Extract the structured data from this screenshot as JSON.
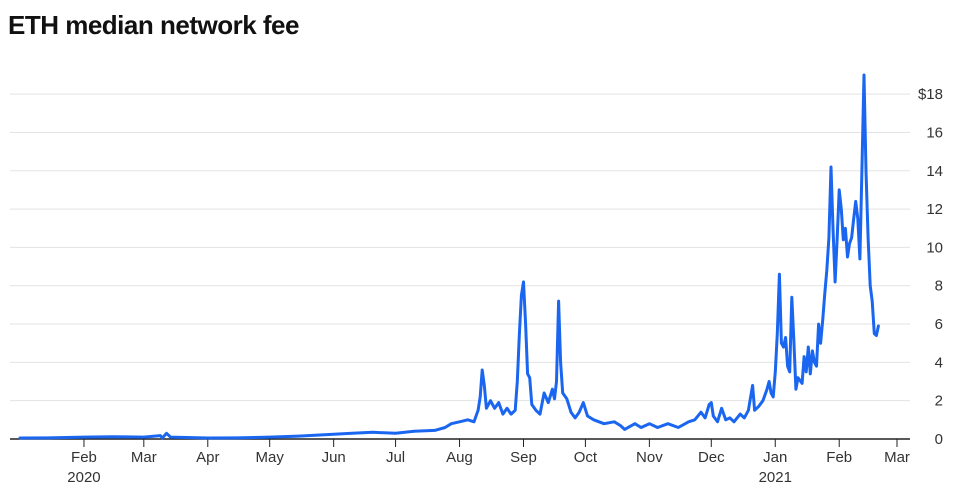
{
  "title": "ETH median network fee",
  "colors": {
    "line": "#1a66f0",
    "grid": "#e3e3e3",
    "axis": "#222222",
    "text": "#333333"
  },
  "chart_data": {
    "type": "line",
    "title": "ETH median network fee",
    "xlabel": "",
    "ylabel": "",
    "x_range": [
      "2020-01-01",
      "2021-03-01"
    ],
    "ylim": [
      0,
      19
    ],
    "grid": true,
    "y_ticks": [
      0,
      2,
      4,
      6,
      8,
      10,
      12,
      14,
      16,
      18
    ],
    "y_tick_labels": [
      "0",
      "2",
      "4",
      "6",
      "8",
      "10",
      "12",
      "14",
      "16",
      "$18"
    ],
    "x_ticks": [
      {
        "date": "2020-02-01",
        "label": "Feb",
        "sublabel": "2020"
      },
      {
        "date": "2020-03-01",
        "label": "Mar",
        "sublabel": ""
      },
      {
        "date": "2020-04-01",
        "label": "Apr",
        "sublabel": ""
      },
      {
        "date": "2020-05-01",
        "label": "May",
        "sublabel": ""
      },
      {
        "date": "2020-06-01",
        "label": "Jun",
        "sublabel": ""
      },
      {
        "date": "2020-07-01",
        "label": "Jul",
        "sublabel": ""
      },
      {
        "date": "2020-08-01",
        "label": "Aug",
        "sublabel": ""
      },
      {
        "date": "2020-09-01",
        "label": "Sep",
        "sublabel": ""
      },
      {
        "date": "2020-10-01",
        "label": "Oct",
        "sublabel": ""
      },
      {
        "date": "2020-11-01",
        "label": "Nov",
        "sublabel": ""
      },
      {
        "date": "2020-12-01",
        "label": "Dec",
        "sublabel": ""
      },
      {
        "date": "2021-01-01",
        "label": "Jan",
        "sublabel": "2021"
      },
      {
        "date": "2021-02-01",
        "label": "Feb",
        "sublabel": ""
      },
      {
        "date": "2021-03-01",
        "label": "Mar",
        "sublabel": ""
      }
    ],
    "series": [
      {
        "color": "#1a66f0",
        "points": [
          [
            "2020-01-01",
            0.05
          ],
          [
            "2020-01-15",
            0.06
          ],
          [
            "2020-02-01",
            0.1
          ],
          [
            "2020-02-15",
            0.12
          ],
          [
            "2020-03-01",
            0.1
          ],
          [
            "2020-03-09",
            0.18
          ],
          [
            "2020-03-10",
            0.05
          ],
          [
            "2020-03-12",
            0.3
          ],
          [
            "2020-03-14",
            0.1
          ],
          [
            "2020-04-01",
            0.05
          ],
          [
            "2020-04-15",
            0.06
          ],
          [
            "2020-05-01",
            0.1
          ],
          [
            "2020-05-15",
            0.15
          ],
          [
            "2020-06-01",
            0.25
          ],
          [
            "2020-06-10",
            0.3
          ],
          [
            "2020-06-20",
            0.35
          ],
          [
            "2020-07-01",
            0.3
          ],
          [
            "2020-07-10",
            0.4
          ],
          [
            "2020-07-20",
            0.45
          ],
          [
            "2020-07-25",
            0.6
          ],
          [
            "2020-07-28",
            0.8
          ],
          [
            "2020-08-01",
            0.9
          ],
          [
            "2020-08-05",
            1.0
          ],
          [
            "2020-08-08",
            0.9
          ],
          [
            "2020-08-10",
            1.5
          ],
          [
            "2020-08-11",
            2.2
          ],
          [
            "2020-08-12",
            3.6
          ],
          [
            "2020-08-13",
            2.8
          ],
          [
            "2020-08-14",
            1.6
          ],
          [
            "2020-08-16",
            2.0
          ],
          [
            "2020-08-18",
            1.6
          ],
          [
            "2020-08-20",
            1.9
          ],
          [
            "2020-08-22",
            1.3
          ],
          [
            "2020-08-24",
            1.6
          ],
          [
            "2020-08-26",
            1.3
          ],
          [
            "2020-08-28",
            1.5
          ],
          [
            "2020-08-29",
            3.0
          ],
          [
            "2020-08-30",
            5.5
          ],
          [
            "2020-08-31",
            7.5
          ],
          [
            "2020-09-01",
            8.2
          ],
          [
            "2020-09-02",
            6.0
          ],
          [
            "2020-09-03",
            3.4
          ],
          [
            "2020-09-04",
            3.2
          ],
          [
            "2020-09-05",
            1.8
          ],
          [
            "2020-09-07",
            1.5
          ],
          [
            "2020-09-09",
            1.3
          ],
          [
            "2020-09-11",
            2.4
          ],
          [
            "2020-09-13",
            1.9
          ],
          [
            "2020-09-15",
            2.6
          ],
          [
            "2020-09-16",
            2.1
          ],
          [
            "2020-09-17",
            3.0
          ],
          [
            "2020-09-18",
            7.2
          ],
          [
            "2020-09-19",
            4.0
          ],
          [
            "2020-09-20",
            2.4
          ],
          [
            "2020-09-22",
            2.1
          ],
          [
            "2020-09-24",
            1.4
          ],
          [
            "2020-09-26",
            1.1
          ],
          [
            "2020-09-28",
            1.4
          ],
          [
            "2020-09-30",
            1.9
          ],
          [
            "2020-10-02",
            1.2
          ],
          [
            "2020-10-05",
            1.0
          ],
          [
            "2020-10-10",
            0.8
          ],
          [
            "2020-10-15",
            0.9
          ],
          [
            "2020-10-18",
            0.7
          ],
          [
            "2020-10-20",
            0.5
          ],
          [
            "2020-10-25",
            0.8
          ],
          [
            "2020-10-28",
            0.6
          ],
          [
            "2020-11-01",
            0.8
          ],
          [
            "2020-11-05",
            0.6
          ],
          [
            "2020-11-10",
            0.8
          ],
          [
            "2020-11-15",
            0.6
          ],
          [
            "2020-11-20",
            0.9
          ],
          [
            "2020-11-23",
            1.0
          ],
          [
            "2020-11-26",
            1.4
          ],
          [
            "2020-11-28",
            1.1
          ],
          [
            "2020-11-30",
            1.8
          ],
          [
            "2020-12-01",
            1.9
          ],
          [
            "2020-12-02",
            1.2
          ],
          [
            "2020-12-04",
            0.9
          ],
          [
            "2020-12-06",
            1.6
          ],
          [
            "2020-12-08",
            1.0
          ],
          [
            "2020-12-10",
            1.1
          ],
          [
            "2020-12-12",
            0.9
          ],
          [
            "2020-12-15",
            1.3
          ],
          [
            "2020-12-17",
            1.1
          ],
          [
            "2020-12-19",
            1.5
          ],
          [
            "2020-12-21",
            2.8
          ],
          [
            "2020-12-22",
            1.5
          ],
          [
            "2020-12-24",
            1.7
          ],
          [
            "2020-12-26",
            2.0
          ],
          [
            "2020-12-28",
            2.6
          ],
          [
            "2020-12-29",
            3.0
          ],
          [
            "2020-12-30",
            2.4
          ],
          [
            "2020-12-31",
            2.2
          ],
          [
            "2021-01-01",
            3.5
          ],
          [
            "2021-01-02",
            5.5
          ],
          [
            "2021-01-03",
            8.6
          ],
          [
            "2021-01-04",
            5.0
          ],
          [
            "2021-01-05",
            4.8
          ],
          [
            "2021-01-06",
            5.3
          ],
          [
            "2021-01-07",
            3.8
          ],
          [
            "2021-01-08",
            3.5
          ],
          [
            "2021-01-09",
            7.4
          ],
          [
            "2021-01-10",
            5.2
          ],
          [
            "2021-01-11",
            2.6
          ],
          [
            "2021-01-12",
            3.2
          ],
          [
            "2021-01-14",
            2.9
          ],
          [
            "2021-01-15",
            4.3
          ],
          [
            "2021-01-16",
            3.5
          ],
          [
            "2021-01-17",
            4.8
          ],
          [
            "2021-01-18",
            3.4
          ],
          [
            "2021-01-19",
            4.6
          ],
          [
            "2021-01-20",
            4.0
          ],
          [
            "2021-01-21",
            3.8
          ],
          [
            "2021-01-22",
            6.0
          ],
          [
            "2021-01-23",
            5.0
          ],
          [
            "2021-01-24",
            6.2
          ],
          [
            "2021-01-25",
            7.6
          ],
          [
            "2021-01-26",
            8.8
          ],
          [
            "2021-01-27",
            10.5
          ],
          [
            "2021-01-28",
            14.2
          ],
          [
            "2021-01-29",
            11.0
          ],
          [
            "2021-01-30",
            8.2
          ],
          [
            "2021-01-31",
            10.5
          ],
          [
            "2021-02-01",
            13.0
          ],
          [
            "2021-02-02",
            12.0
          ],
          [
            "2021-02-03",
            10.4
          ],
          [
            "2021-02-04",
            11.0
          ],
          [
            "2021-02-05",
            9.5
          ],
          [
            "2021-02-06",
            10.2
          ],
          [
            "2021-02-07",
            10.5
          ],
          [
            "2021-02-08",
            11.5
          ],
          [
            "2021-02-09",
            12.4
          ],
          [
            "2021-02-10",
            11.5
          ],
          [
            "2021-02-11",
            9.4
          ],
          [
            "2021-02-12",
            14.0
          ],
          [
            "2021-02-13",
            19.0
          ],
          [
            "2021-02-14",
            14.0
          ],
          [
            "2021-02-15",
            10.5
          ],
          [
            "2021-02-16",
            8.0
          ],
          [
            "2021-02-17",
            7.2
          ],
          [
            "2021-02-18",
            5.5
          ],
          [
            "2021-02-19",
            5.4
          ],
          [
            "2021-02-20",
            5.9
          ]
        ]
      }
    ]
  }
}
